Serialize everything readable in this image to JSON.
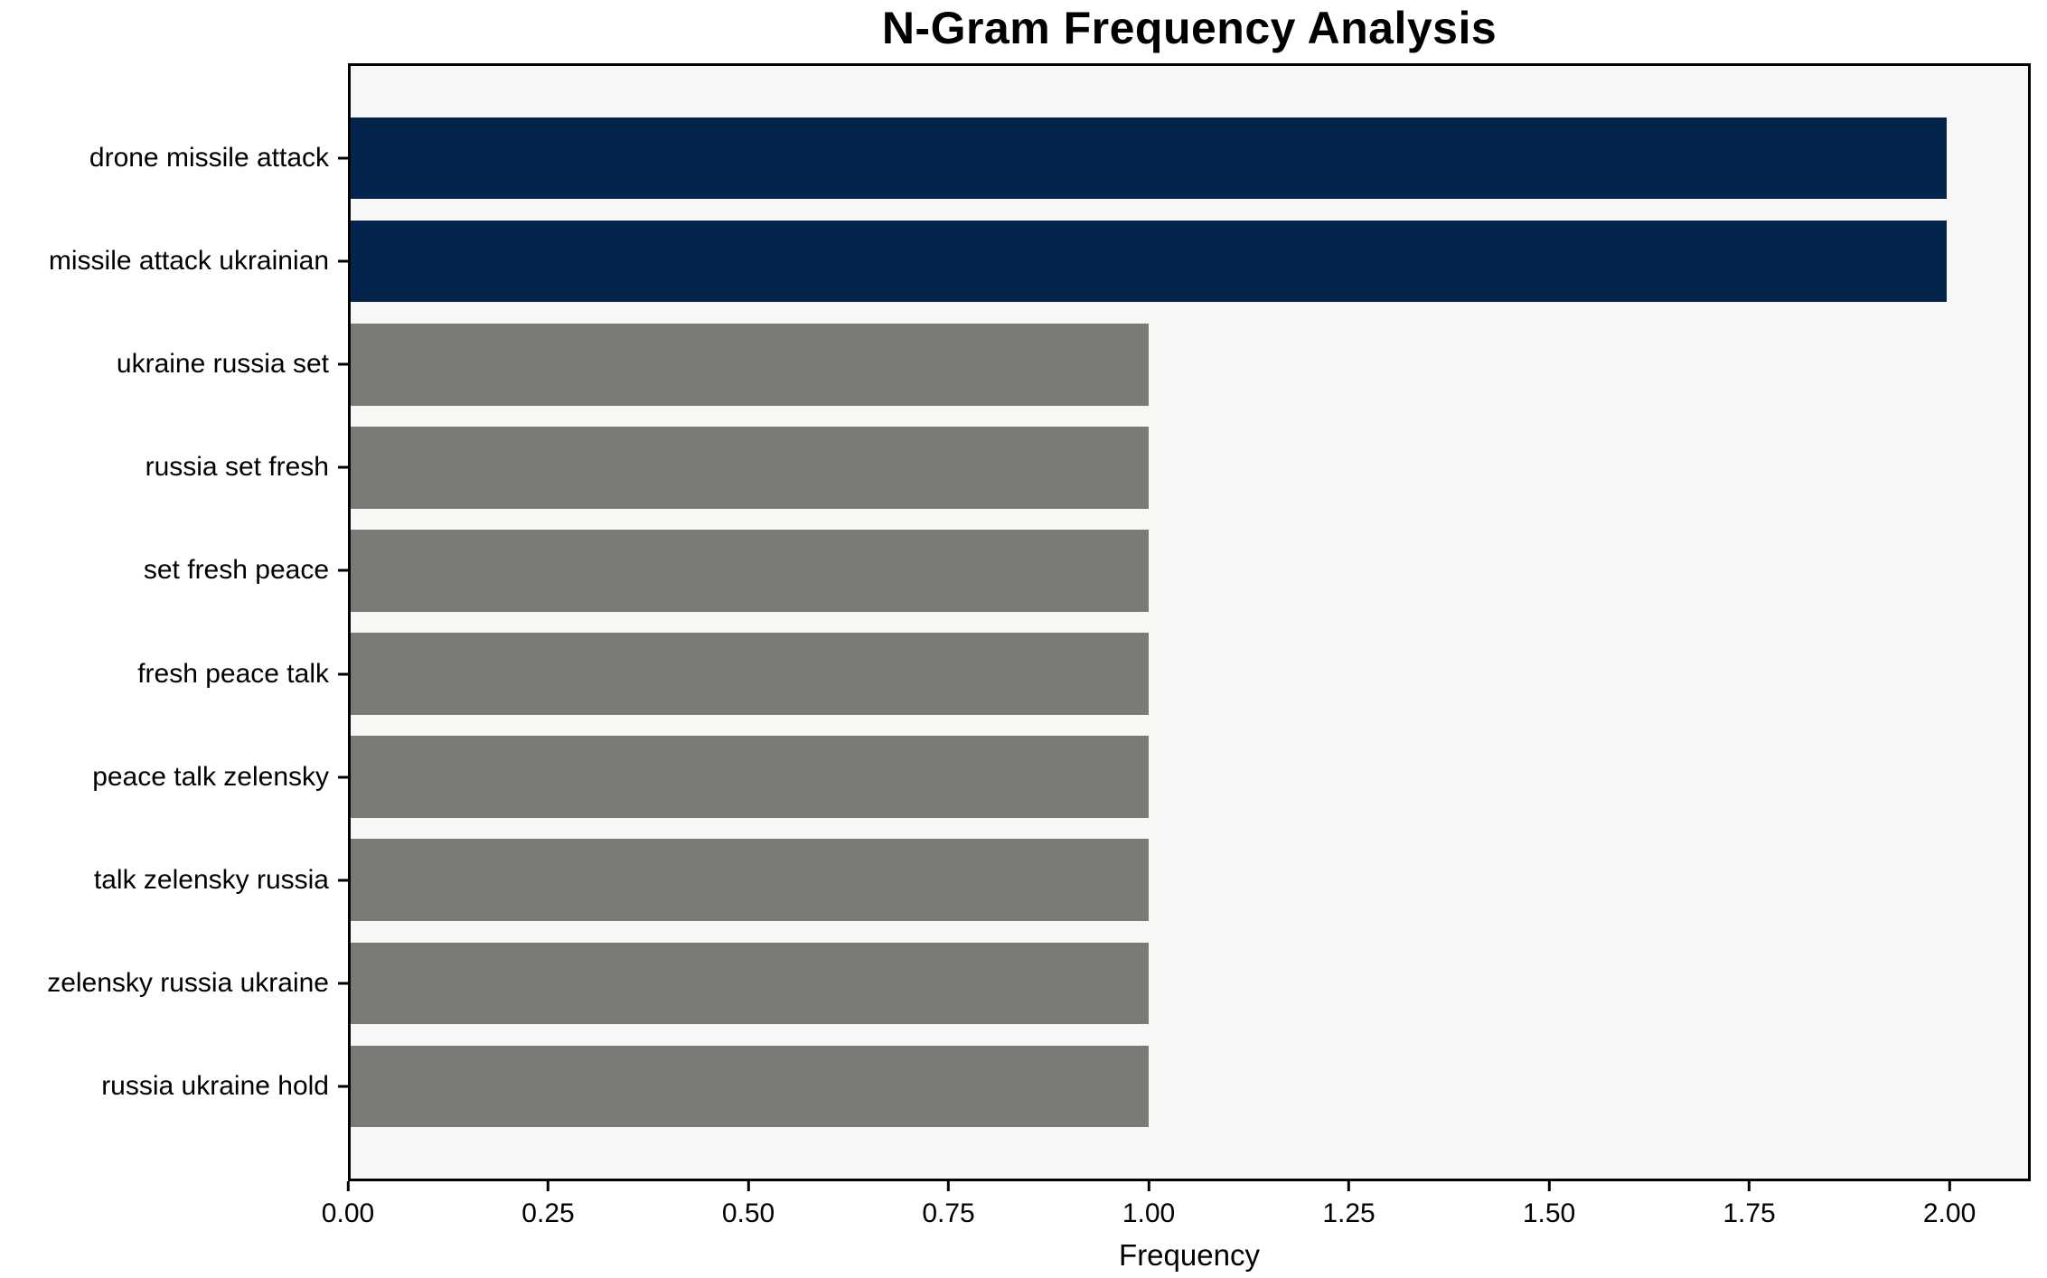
{
  "chart_data": {
    "type": "bar",
    "orientation": "horizontal",
    "title": "N-Gram Frequency Analysis",
    "xlabel": "Frequency",
    "ylabel": "",
    "grid": false,
    "legend": null,
    "xlim": [
      0,
      2.1015
    ],
    "categories": [
      "drone missile attack",
      "missile attack ukrainian",
      "ukraine russia set",
      "russia set fresh",
      "set fresh peace",
      "fresh peace talk",
      "peace talk zelensky",
      "talk zelensky russia",
      "zelensky russia ukraine",
      "russia ukraine hold"
    ],
    "values": [
      2,
      2,
      1,
      1,
      1,
      1,
      1,
      1,
      1,
      1
    ],
    "bar_colors": [
      "#03254c",
      "#03254c",
      "#7b7a76",
      "#7b7a76",
      "#7b7a76",
      "#7b7a76",
      "#7b7a76",
      "#7b7a76",
      "#7b7a76",
      "#7b7a76"
    ],
    "xticks": [
      {
        "value": 0,
        "label": "0.00"
      },
      {
        "value": 0.25,
        "label": "0.25"
      },
      {
        "value": 0.5,
        "label": "0.50"
      },
      {
        "value": 0.75,
        "label": "0.75"
      },
      {
        "value": 1,
        "label": "1.00"
      },
      {
        "value": 1.25,
        "label": "1.25"
      },
      {
        "value": 1.5,
        "label": "1.50"
      },
      {
        "value": 1.75,
        "label": "1.75"
      },
      {
        "value": 2,
        "label": "2.00"
      }
    ],
    "colors": {
      "bar_high": "#03254c",
      "bar_low": "#7b7a76",
      "plot_background": "#f7f7f6",
      "figure_background": "#ffffff",
      "axis": "#000000",
      "text": "#000000"
    }
  }
}
